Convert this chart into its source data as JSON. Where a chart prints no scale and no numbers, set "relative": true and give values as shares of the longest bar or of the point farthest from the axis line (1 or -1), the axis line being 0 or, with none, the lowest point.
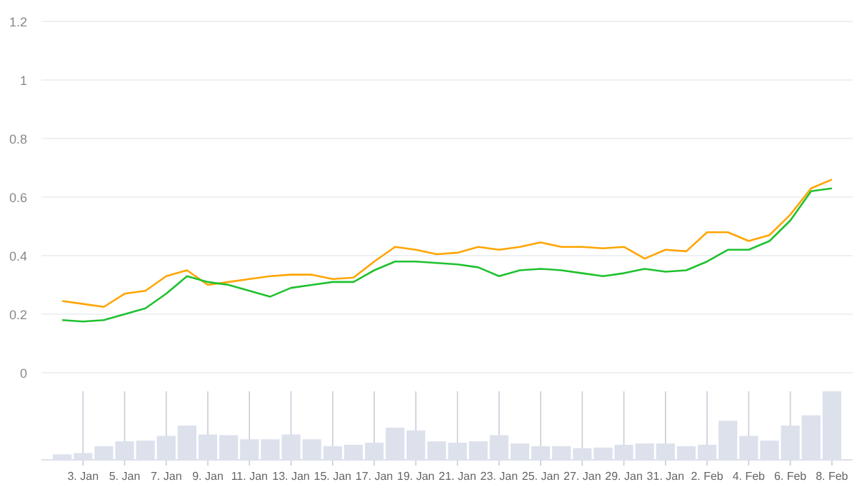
{
  "chart_data": [
    {
      "type": "line",
      "x": [
        "--01-02",
        "--01-03",
        "--01-04",
        "--01-05",
        "--01-06",
        "--01-07",
        "--01-08",
        "--01-09",
        "--01-10",
        "--01-11",
        "--01-12",
        "--01-13",
        "--01-14",
        "--01-15",
        "--01-16",
        "--01-17",
        "--01-18",
        "--01-19",
        "--01-20",
        "--01-21",
        "--01-22",
        "--01-23",
        "--01-24",
        "--01-25",
        "--01-26",
        "--01-27",
        "--01-28",
        "--01-29",
        "--01-30",
        "--01-31",
        "--02-01",
        "--02-02",
        "--02-03",
        "--02-04",
        "--02-05",
        "--02-06",
        "--02-07",
        "--02-08"
      ],
      "series": [
        {
          "color": "#ffa500",
          "values": [
            0.245,
            0.235,
            0.225,
            0.27,
            0.28,
            0.33,
            0.35,
            0.3,
            0.31,
            0.32,
            0.33,
            0.335,
            0.335,
            0.32,
            0.325,
            0.38,
            0.43,
            0.42,
            0.405,
            0.41,
            0.43,
            0.42,
            0.43,
            0.445,
            0.43,
            0.43,
            0.425,
            0.43,
            0.39,
            0.42,
            0.415,
            0.48,
            0.48,
            0.45,
            0.47,
            0.54,
            0.63,
            0.66
          ]
        },
        {
          "color": "#1fc12f",
          "values": [
            0.18,
            0.175,
            0.18,
            0.2,
            0.22,
            0.27,
            0.33,
            0.31,
            0.3,
            0.28,
            0.26,
            0.29,
            0.3,
            0.31,
            0.31,
            0.35,
            0.38,
            0.38,
            0.375,
            0.37,
            0.36,
            0.33,
            0.35,
            0.355,
            0.35,
            0.34,
            0.33,
            0.34,
            0.355,
            0.345,
            0.35,
            0.38,
            0.42,
            0.42,
            0.45,
            0.52,
            0.62,
            0.63
          ]
        }
      ],
      "xlim": [
        "--01-01",
        "--02-09"
      ],
      "ylim": [
        0,
        1.2
      ],
      "yticks": [
        0,
        0.2,
        0.4,
        0.6,
        0.8,
        1,
        1.2
      ],
      "grid": "y",
      "tick_labels": "y"
    },
    {
      "type": "bar",
      "relative": true,
      "x": [
        "--01-02",
        "--01-03",
        "--01-04",
        "--01-05",
        "--01-06",
        "--01-07",
        "--01-08",
        "--01-09",
        "--01-10",
        "--01-11",
        "--01-12",
        "--01-13",
        "--01-14",
        "--01-15",
        "--01-16",
        "--01-17",
        "--01-18",
        "--01-19",
        "--01-20",
        "--01-21",
        "--01-22",
        "--01-23",
        "--01-24",
        "--01-25",
        "--01-26",
        "--01-27",
        "--01-28",
        "--01-29",
        "--01-30",
        "--01-31",
        "--02-01",
        "--02-02",
        "--02-03",
        "--02-04",
        "--02-05",
        "--02-06",
        "--02-07",
        "--02-08"
      ],
      "values": [
        0.08,
        0.1,
        0.2,
        0.27,
        0.28,
        0.35,
        0.5,
        0.37,
        0.36,
        0.3,
        0.3,
        0.37,
        0.3,
        0.2,
        0.22,
        0.25,
        0.47,
        0.43,
        0.27,
        0.25,
        0.27,
        0.36,
        0.24,
        0.2,
        0.2,
        0.17,
        0.18,
        0.22,
        0.24,
        0.24,
        0.2,
        0.22,
        0.57,
        0.35,
        0.28,
        0.5,
        0.65,
        1
      ],
      "color": "#dde1ec",
      "xlim": [
        "--01-01",
        "--02-09"
      ],
      "xticks": [
        {
          "value": "--01-03",
          "label": "3. Jan"
        },
        {
          "value": "--01-05",
          "label": "5. Jan"
        },
        {
          "value": "--01-07",
          "label": "7. Jan"
        },
        {
          "value": "--01-09",
          "label": "9. Jan"
        },
        {
          "value": "--01-11",
          "label": "11. Jan"
        },
        {
          "value": "--01-13",
          "label": "13. Jan"
        },
        {
          "value": "--01-15",
          "label": "15. Jan"
        },
        {
          "value": "--01-17",
          "label": "17. Jan"
        },
        {
          "value": "--01-19",
          "label": "19. Jan"
        },
        {
          "value": "--01-21",
          "label": "21. Jan"
        },
        {
          "value": "--01-23",
          "label": "23. Jan"
        },
        {
          "value": "--01-25",
          "label": "25. Jan"
        },
        {
          "value": "--01-27",
          "label": "27. Jan"
        },
        {
          "value": "--01-29",
          "label": "29. Jan"
        },
        {
          "value": "--01-31",
          "label": "31. Jan"
        },
        {
          "value": "--02-02",
          "label": "2. Feb"
        },
        {
          "value": "--02-04",
          "label": "4. Feb"
        },
        {
          "value": "--02-06",
          "label": "6. Feb"
        },
        {
          "value": "--02-08",
          "label": "8. Feb"
        }
      ],
      "tick_labels": "x",
      "grid": "x"
    }
  ]
}
